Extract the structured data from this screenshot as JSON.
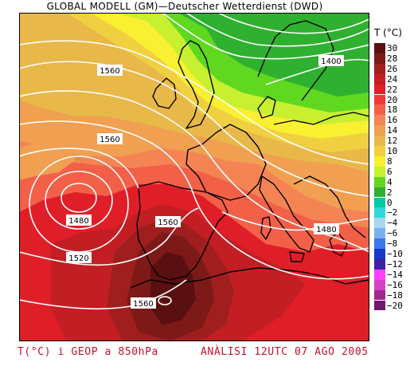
{
  "title": "GLOBAL MODELL (GM)—Deutscher Wetterdienst (DWD)",
  "legend": {
    "title": "T (°C)",
    "levels": [
      {
        "label": "30",
        "color": "#5a1010"
      },
      {
        "label": "28",
        "color": "#7d1a18"
      },
      {
        "label": "26",
        "color": "#a01e1e"
      },
      {
        "label": "24",
        "color": "#c21e24"
      },
      {
        "label": "22",
        "color": "#e01e28"
      },
      {
        "label": "20",
        "color": "#f03a3a"
      },
      {
        "label": "18",
        "color": "#f26048"
      },
      {
        "label": "16",
        "color": "#f58454"
      },
      {
        "label": "14",
        "color": "#f0a050"
      },
      {
        "label": "12",
        "color": "#e8b848"
      },
      {
        "label": "10",
        "color": "#f0d040"
      },
      {
        "label": "8",
        "color": "#f8f030"
      },
      {
        "label": "6",
        "color": "#c8f030"
      },
      {
        "label": "4",
        "color": "#60d820"
      },
      {
        "label": "2",
        "color": "#30b030"
      },
      {
        "label": "0",
        "color": "#00c8a0"
      },
      {
        "label": "−2",
        "color": "#30d8d8"
      },
      {
        "label": "−4",
        "color": "#a8d8f0"
      },
      {
        "label": "−6",
        "color": "#7ab0f0"
      },
      {
        "label": "−8",
        "color": "#3c78e8"
      },
      {
        "label": "−10",
        "color": "#1838c8"
      },
      {
        "label": "−12",
        "color": "#3a22a0"
      },
      {
        "label": "−14",
        "color": "#ff40ff"
      },
      {
        "label": "−16",
        "color": "#d840c8"
      },
      {
        "label": "−18",
        "color": "#a02890"
      },
      {
        "label": "−20",
        "color": "#701870"
      }
    ]
  },
  "map": {
    "isohypse_labels": [
      "1560",
      "1560",
      "1400",
      "1480",
      "1520",
      "1560",
      "1480",
      "1560"
    ],
    "contour_color": "#ffffff",
    "coast_color": "#000000"
  },
  "footer": {
    "left": "T(°C) i GEOP a 850hPa",
    "right": "ANÀLISI 12UTC 07 AGO 2005"
  }
}
